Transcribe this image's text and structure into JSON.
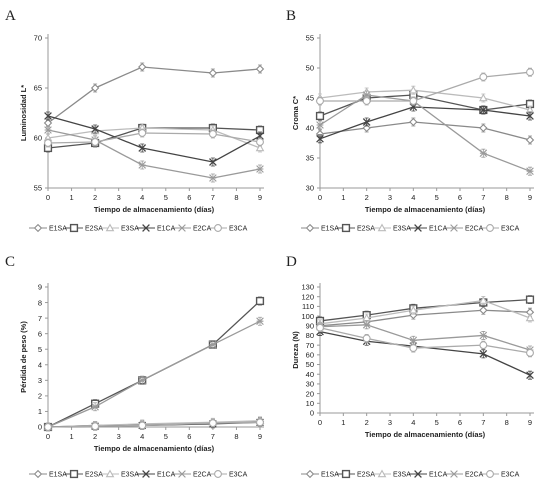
{
  "panels": [
    {
      "letter": "A"
    },
    {
      "letter": "B"
    },
    {
      "letter": "C"
    },
    {
      "letter": "D"
    }
  ],
  "legend": [
    "E1SA",
    "E2SA",
    "E3SA",
    "E1CA",
    "E2CA",
    "E3CA"
  ],
  "series_styles": {
    "E1SA": {
      "marker": "diamond",
      "color": "#8a8a8a"
    },
    "E2SA": {
      "marker": "square",
      "color": "#555555"
    },
    "E3SA": {
      "marker": "triangle",
      "color": "#bbbbbb"
    },
    "E1CA": {
      "marker": "x",
      "color": "#444444"
    },
    "E2CA": {
      "marker": "asterisk",
      "color": "#9a9a9a"
    },
    "E3CA": {
      "marker": "circle",
      "color": "#aaaaaa"
    }
  },
  "chart_data": [
    {
      "type": "line",
      "xlabel": "Tiempo de almacenamiento (días)",
      "ylabel": "Luminosidad L*",
      "x": [
        0,
        2,
        4,
        7,
        9
      ],
      "xticks": [
        0,
        1,
        2,
        3,
        4,
        5,
        6,
        7,
        8,
        9
      ],
      "yticks": [
        55,
        60,
        65,
        70
      ],
      "ylim": [
        55,
        70
      ],
      "xlim": [
        0,
        9
      ],
      "series": [
        {
          "name": "E1SA",
          "values": [
            61.5,
            65.0,
            67.1,
            66.5,
            66.9
          ]
        },
        {
          "name": "E2SA",
          "values": [
            59.0,
            59.5,
            61.0,
            61.0,
            60.8
          ]
        },
        {
          "name": "E3SA",
          "values": [
            60.0,
            60.7,
            61.0,
            60.8,
            59.0
          ]
        },
        {
          "name": "E1CA",
          "values": [
            62.2,
            60.9,
            59.0,
            57.6,
            60.2
          ]
        },
        {
          "name": "E2CA",
          "values": [
            60.8,
            59.8,
            57.3,
            56.0,
            56.9
          ]
        },
        {
          "name": "E3CA",
          "values": [
            59.5,
            59.6,
            60.5,
            60.4,
            59.6
          ]
        }
      ]
    },
    {
      "type": "line",
      "xlabel": "Tiempo de almacenamiento (días)",
      "ylabel": "Croma C*",
      "x": [
        0,
        2,
        4,
        7,
        9
      ],
      "xticks": [
        0,
        1,
        2,
        3,
        4,
        5,
        6,
        7,
        8,
        9
      ],
      "yticks": [
        30,
        35,
        40,
        45,
        50,
        55
      ],
      "ylim": [
        30,
        55
      ],
      "xlim": [
        0,
        9
      ],
      "series": [
        {
          "name": "E1SA",
          "values": [
            39.0,
            40.0,
            41.0,
            40.0,
            38.0
          ]
        },
        {
          "name": "E2SA",
          "values": [
            42.0,
            45.0,
            45.5,
            43.0,
            44.0
          ]
        },
        {
          "name": "E3SA",
          "values": [
            45.0,
            46.0,
            46.3,
            45.0,
            43.0
          ]
        },
        {
          "name": "E1CA",
          "values": [
            38.2,
            41.0,
            43.5,
            43.0,
            42.0
          ]
        },
        {
          "name": "E2CA",
          "values": [
            40.5,
            45.5,
            44.5,
            35.8,
            32.8
          ]
        },
        {
          "name": "E3CA",
          "values": [
            44.5,
            44.5,
            44.5,
            48.5,
            49.3
          ]
        }
      ]
    },
    {
      "type": "line",
      "xlabel": "Tiempo de almacenamiento (días)",
      "ylabel": "Pérdida de peso (%)",
      "x": [
        0,
        2,
        4,
        7,
        9
      ],
      "xticks": [
        0,
        1,
        2,
        3,
        4,
        5,
        6,
        7,
        8,
        9
      ],
      "yticks": [
        0,
        1,
        2,
        3,
        4,
        5,
        6,
        7,
        8,
        9
      ],
      "ylim": [
        0,
        9
      ],
      "xlim": [
        0,
        9
      ],
      "series": [
        {
          "name": "E1SA",
          "values": [
            0.0,
            0.1,
            0.15,
            0.25,
            0.35
          ]
        },
        {
          "name": "E2SA",
          "values": [
            0.0,
            1.5,
            3.0,
            5.3,
            8.1
          ]
        },
        {
          "name": "E3SA",
          "values": [
            0.0,
            0.1,
            0.2,
            0.3,
            0.4
          ]
        },
        {
          "name": "E1CA",
          "values": [
            0.0,
            0.05,
            0.1,
            0.2,
            0.3
          ]
        },
        {
          "name": "E2CA",
          "values": [
            0.0,
            1.3,
            3.0,
            5.3,
            6.8
          ]
        },
        {
          "name": "E3CA",
          "values": [
            0.0,
            0.05,
            0.1,
            0.25,
            0.3
          ]
        }
      ]
    },
    {
      "type": "line",
      "xlabel": "Tiempo de almacenamiento (días)",
      "ylabel": "Dureza (N)",
      "x": [
        0,
        2,
        4,
        7,
        9
      ],
      "xticks": [
        0,
        1,
        2,
        3,
        4,
        5,
        6,
        7,
        8,
        9
      ],
      "yticks": [
        0,
        10,
        20,
        30,
        40,
        50,
        60,
        70,
        80,
        90,
        100,
        110,
        120,
        130
      ],
      "ylim": [
        0,
        130
      ],
      "xlim": [
        0,
        9
      ],
      "series": [
        {
          "name": "E1SA",
          "values": [
            90,
            94,
            101,
            106,
            104
          ]
        },
        {
          "name": "E2SA",
          "values": [
            95,
            101,
            108,
            114,
            117
          ]
        },
        {
          "name": "E3SA",
          "values": [
            92,
            98,
            106,
            116,
            98
          ]
        },
        {
          "name": "E1CA",
          "values": [
            84,
            74,
            69,
            61,
            39
          ]
        },
        {
          "name": "E2CA",
          "values": [
            89,
            91,
            75,
            80,
            65
          ]
        },
        {
          "name": "E3CA",
          "values": [
            88,
            77,
            67,
            70,
            62
          ]
        }
      ]
    }
  ]
}
